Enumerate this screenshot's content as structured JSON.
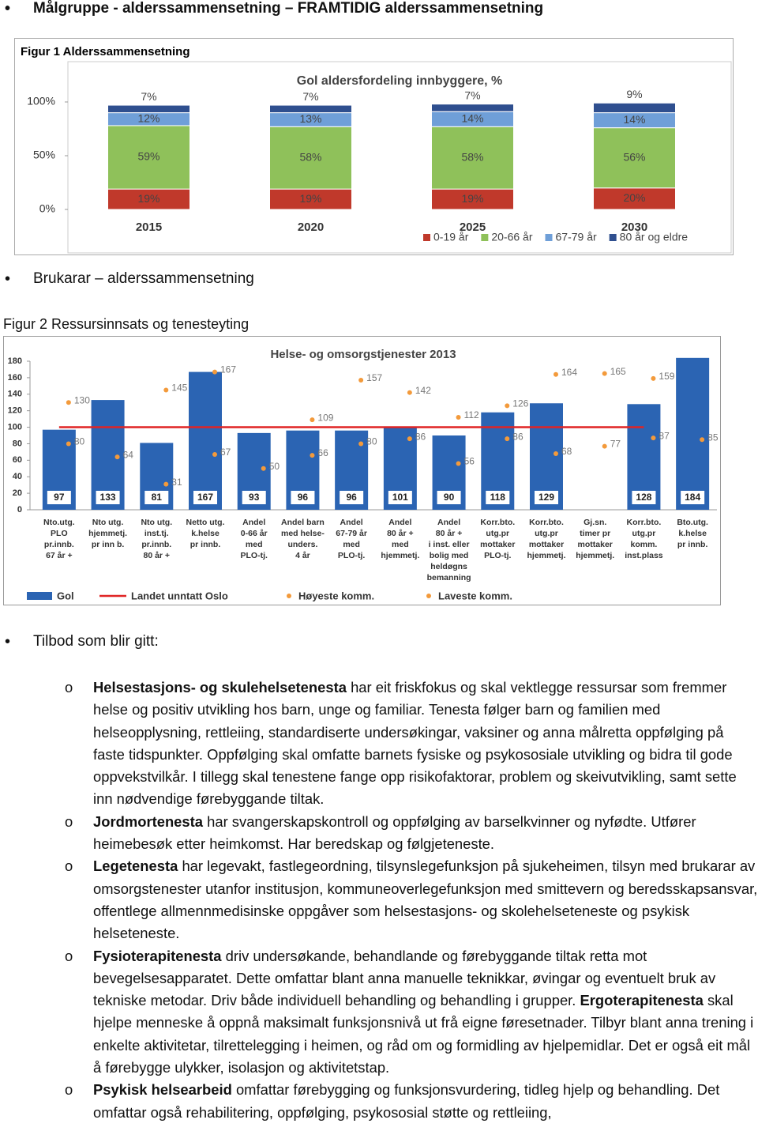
{
  "heading": "Målgruppe  - alderssammensetning – FRAMTIDIG alderssammensetning",
  "figure1_label": "Figur 1 Alderssammensetning",
  "bullet2": "Brukarar – alderssammensetning",
  "figure2_label": "Figur 2 Ressursinnsats og tenesteyting",
  "bullet3": "Tilbod som blir gitt:",
  "chart_data": [
    {
      "type": "stacked_bar",
      "title": "Gol aldersfordeling innbyggere, %",
      "categories": [
        "2015",
        "2020",
        "2025",
        "2030"
      ],
      "series": [
        {
          "name": "0-19 år",
          "color": "#c0392b",
          "values": [
            19,
            19,
            19,
            20
          ],
          "value_labels": [
            "19%",
            "19%",
            "19%",
            "20%"
          ]
        },
        {
          "name": "20-66 år",
          "color": "#8fc15a",
          "values": [
            59,
            58,
            58,
            56
          ],
          "value_labels": [
            "59%",
            "58%",
            "58%",
            "56%"
          ]
        },
        {
          "name": "67-79 år",
          "color": "#6f9fd8",
          "values": [
            12,
            13,
            14,
            14
          ],
          "value_labels": [
            "12%",
            "13%",
            "14%",
            "14%"
          ]
        },
        {
          "name": "80 år og eldre",
          "color": "#2f4f8f",
          "values": [
            7,
            7,
            7,
            9
          ],
          "value_labels": [
            "7%",
            "7%",
            "7%",
            "9%"
          ]
        }
      ],
      "ylim": [
        0,
        100
      ],
      "yticks": [
        {
          "value": 0,
          "label": "0%"
        },
        {
          "value": 50,
          "label": "50%"
        },
        {
          "value": 100,
          "label": "100%"
        }
      ],
      "legend": "bottom-right"
    },
    {
      "type": "bar",
      "title": "Helse- og omsorgstjenester 2013",
      "categories": [
        [
          "Nto.utg.",
          "PLO",
          "pr.innb.",
          "67 år +"
        ],
        [
          "Nto utg.",
          "hjemmetj.",
          "pr inn b."
        ],
        [
          "Nto utg.",
          "inst.tj.",
          "pr.innb.",
          "80 år +"
        ],
        [
          "Netto utg.",
          "k.helse",
          "pr innb."
        ],
        [
          "Andel",
          "0-66 år",
          "med",
          "PLO-tj."
        ],
        [
          "Andel barn",
          "med helse-",
          "unders.",
          "4 år"
        ],
        [
          "Andel",
          "67-79 år",
          "med",
          "PLO-tj."
        ],
        [
          "Andel",
          "80 år +",
          "med",
          "hjemmetj."
        ],
        [
          "Andel",
          "80 år +",
          "i inst. eller",
          "bolig med",
          "heldøgns",
          "bemanning"
        ],
        [
          "Korr.bto.",
          "utg.pr",
          "mottaker",
          "PLO-tj."
        ],
        [
          "Korr.bto.",
          "utg.pr",
          "mottaker",
          "hjemmetj."
        ],
        [
          "Gj.sn.",
          "timer pr",
          "mottaker",
          "hjemmetj."
        ],
        [
          "Korr.bto.",
          "utg.pr",
          "komm.",
          "inst.plass"
        ],
        [
          "Bto.utg.",
          "k.helse",
          "pr innb."
        ]
      ],
      "series": [
        {
          "name": "Gol",
          "type": "bar",
          "color": "#2b64b3",
          "values": [
            97,
            133,
            81,
            167,
            93,
            96,
            96,
            101,
            90,
            118,
            129,
            null,
            128,
            184
          ]
        },
        {
          "name": "Landet unntatt Oslo",
          "type": "line",
          "color": "#e02424",
          "values": [
            100,
            100,
            100,
            100,
            100,
            100,
            100,
            100,
            100,
            100,
            100,
            100,
            100,
            null
          ]
        },
        {
          "name": "Høyeste komm.",
          "type": "scatter",
          "color": "#f39a3b",
          "values": [
            130,
            null,
            145,
            167,
            null,
            109,
            157,
            142,
            112,
            126,
            164,
            165,
            159,
            null
          ]
        },
        {
          "name": "Laveste komm.",
          "type": "scatter",
          "color": "#f39a3b",
          "values": [
            80,
            64,
            31,
            67,
            50,
            66,
            80,
            86,
            56,
            86,
            68,
            77,
            87,
            85
          ]
        }
      ],
      "ylim": [
        0,
        180
      ],
      "yticks": [
        0,
        20,
        40,
        60,
        80,
        100,
        120,
        140,
        160,
        180
      ],
      "legend": "bottom"
    }
  ],
  "items": [
    [
      {
        "bold": "Helsestasjons- og skulehelsetenesta"
      },
      {
        "text": " har eit friskfokus og skal vektlegge ressursar som fremmer helse og positiv utvikling hos barn, unge og familiar. Tenesta følger barn og familien med helseopplysning, rettleiing, standardiserte undersøkingar, vaksiner og anna målretta oppfølging på faste tidspunkter. Oppfølging skal omfatte barnets fysiske og psykososiale utvikling og bidra til gode oppvekstvilkår. I tillegg skal tenestene fange opp risikofaktorar, problem og skeivutvikling, samt sette inn nødvendige førebyggande tiltak."
      }
    ],
    [
      {
        "bold": "Jordmortenesta"
      },
      {
        "text": " har svangerskapskontroll og oppfølging av barselkvinner og nyfødte. Utfører heimebesøk etter heimkomst. Har beredskap og følgjeteneste."
      }
    ],
    [
      {
        "bold": "Legetenesta"
      },
      {
        "text": " har legevakt, fastlegeordning, tilsynslegefunksjon på sjukeheimen, tilsyn med brukarar av omsorgstenester utanfor institusjon, kommuneoverlegefunksjon med smittevern og beredsskapsansvar, offentlege allmennmedisinske oppgåver som helsestasjons- og skolehelseteneste og psykisk helseteneste."
      }
    ],
    [
      {
        "bold": "Fysioterapitenesta"
      },
      {
        "text": " driv undersøkande, behandlande og førebyggande tiltak retta mot bevegelsesapparatet. Dette omfattar blant anna manuelle teknikkar, øvingar og eventuelt bruk av tekniske metodar. Driv både individuell behandling og behandling i grupper. "
      },
      {
        "bold": "Ergoterapitenesta"
      },
      {
        "text": " skal hjelpe menneske å oppnå maksimalt funksjonsnivå ut frå eigne føresetnader. Tilbyr blant anna trening i enkelte aktivitetar, tilrettelegging i heimen, og råd om og formidling av hjelpemidlar. Det er også eit mål å førebygge ulykker, isolasjon og aktivitetstap."
      }
    ],
    [
      {
        "bold": "Psykisk helsearbeid"
      },
      {
        "text": " omfattar førebygging og funksjonsvurdering, tidleg hjelp og behandling. Det omfattar også rehabilitering, oppfølging, psykososial støtte og rettleiing,"
      }
    ]
  ]
}
